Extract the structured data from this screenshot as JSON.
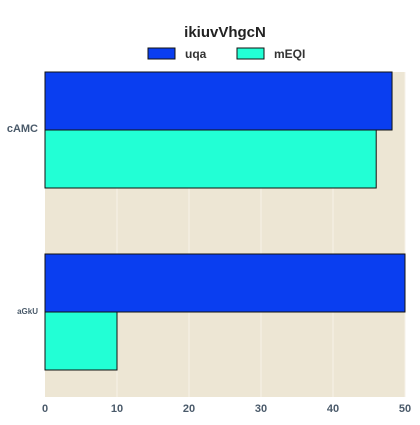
{
  "chart_data": {
    "type": "bar",
    "orientation": "horizontal",
    "title": "ikiuvVhgcN",
    "categories": [
      "cAMC",
      "aGkU"
    ],
    "series": [
      {
        "name": "uqa",
        "color": "#0a3ef0",
        "values": [
          48.2,
          50.0
        ]
      },
      {
        "name": "mEQI",
        "color": "#22ffd5",
        "values": [
          46.0,
          10.0
        ]
      }
    ],
    "xlim": [
      0,
      50
    ],
    "xticks": [
      0,
      10,
      20,
      30,
      40,
      50
    ],
    "grid": true,
    "legend_position": "top-center",
    "plot_background": "#ede6d4",
    "gridline_color": "#f6f2e8"
  }
}
